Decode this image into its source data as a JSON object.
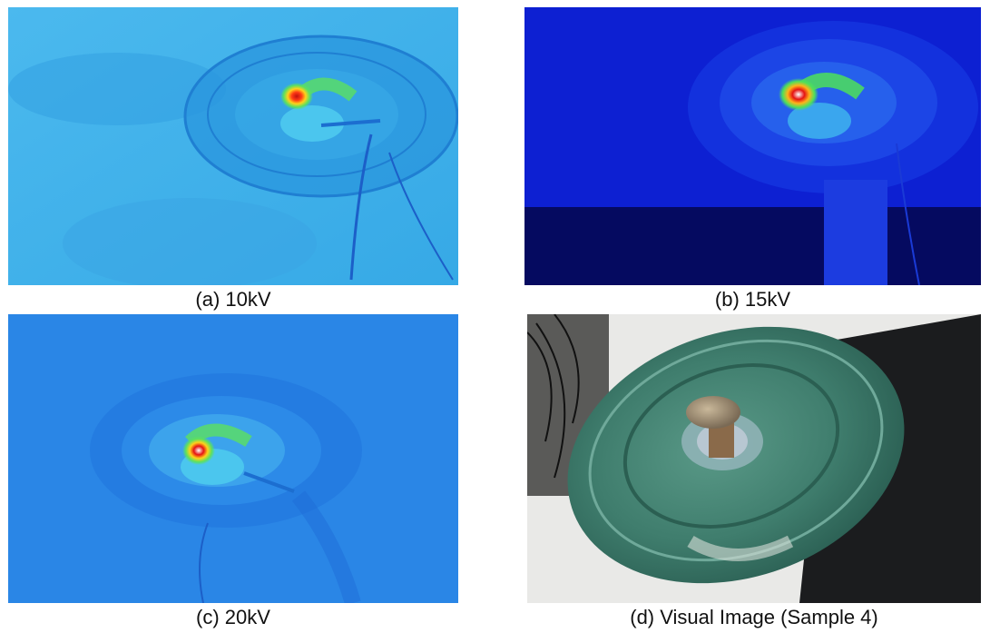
{
  "panels": [
    {
      "id": "a",
      "caption": "(a) 10kV"
    },
    {
      "id": "b",
      "caption": "(b) 15kV"
    },
    {
      "id": "c",
      "caption": "(c) 20kV"
    },
    {
      "id": "d",
      "caption": "(d) Visual Image (Sample 4)"
    }
  ],
  "colors": {
    "thermal_a_bg": "#3fb2ea",
    "thermal_b_bg": "#0c1fd0",
    "thermal_c_bg": "#2a86e6",
    "hotspot_core": "#ffffff",
    "hotspot_red": "#e51313",
    "hotspot_yellow": "#ffd21a",
    "hotspot_green": "#4ee05a",
    "glass_green": "#3f7d6d"
  }
}
